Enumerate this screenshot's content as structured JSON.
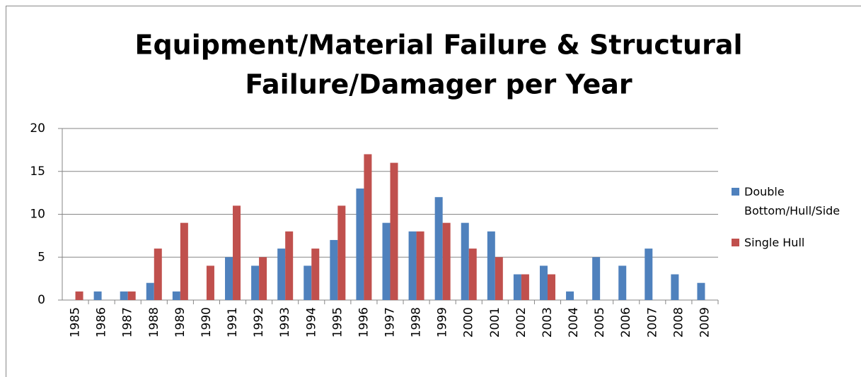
{
  "chart_data": {
    "type": "bar",
    "title": [
      "Equipment/Material Failure & Structural",
      "Failure/Damager per Year"
    ],
    "categories": [
      "1985",
      "1986",
      "1987",
      "1988",
      "1989",
      "1990",
      "1991",
      "1992",
      "1993",
      "1994",
      "1995",
      "1996",
      "1997",
      "1998",
      "1999",
      "2000",
      "2001",
      "2002",
      "2003",
      "2004",
      "2005",
      "2006",
      "2007",
      "2008",
      "2009"
    ],
    "series": [
      {
        "name": "Double Bottom/Hull/Side",
        "color": "#4f81bd",
        "values": [
          0,
          1,
          1,
          2,
          1,
          0,
          5,
          4,
          6,
          4,
          7,
          13,
          9,
          8,
          12,
          9,
          8,
          3,
          4,
          1,
          5,
          4,
          6,
          3,
          2
        ]
      },
      {
        "name": "Single Hull",
        "color": "#c0504d",
        "values": [
          1,
          0,
          1,
          6,
          9,
          4,
          11,
          5,
          8,
          6,
          11,
          17,
          16,
          8,
          9,
          6,
          5,
          3,
          3,
          0,
          0,
          0,
          0,
          0,
          0
        ]
      }
    ],
    "ylim": [
      0,
      20
    ],
    "yticks": [
      0,
      5,
      10,
      15,
      20
    ],
    "grid": true,
    "legend": "right"
  }
}
